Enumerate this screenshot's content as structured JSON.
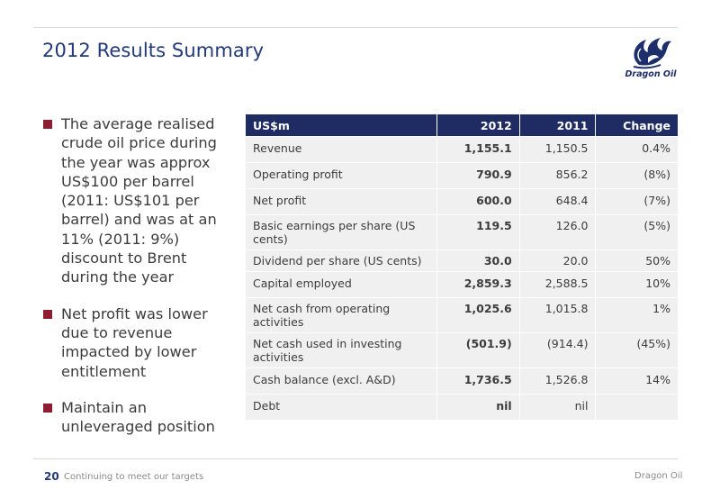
{
  "header": {
    "title": "2012 Results Summary"
  },
  "logo": {
    "text": "Dragon Oil"
  },
  "bullets": [
    "The average realised crude oil price during the year was approx US$100 per barrel (2011: US$101 per barrel) and was at an 11% (2011: 9%) discount to Brent during the year",
    "Net profit was lower due to revenue impacted by lower entitlement",
    "Maintain an unleveraged position"
  ],
  "table": {
    "headers": [
      "US$m",
      "2012",
      "2011",
      "Change"
    ],
    "rows": [
      {
        "label": "Revenue",
        "y2012": "1,155.1",
        "y2011": "1,150.5",
        "change": "0.4%"
      },
      {
        "label": "Operating profit",
        "y2012": "790.9",
        "y2011": "856.2",
        "change": "(8%)"
      },
      {
        "label": "Net profit",
        "y2012": "600.0",
        "y2011": "648.4",
        "change": "(7%)"
      },
      {
        "label": "Basic earnings per share (US cents)",
        "y2012": "119.5",
        "y2011": "126.0",
        "change": "(5%)"
      },
      {
        "label": "Dividend per share (US cents)",
        "y2012": "30.0",
        "y2011": "20.0",
        "change": "50%"
      },
      {
        "label": "Capital employed",
        "y2012": "2,859.3",
        "y2011": "2,588.5",
        "change": "10%"
      },
      {
        "label": "Net cash from operating activities",
        "y2012": "1,025.6",
        "y2011": "1,015.8",
        "change": "1%"
      },
      {
        "label": "Net cash used in investing activities",
        "y2012": "(501.9)",
        "y2011": "(914.4)",
        "change": "(45%)"
      },
      {
        "label": "Cash balance (excl. A&D)",
        "y2012": "1,736.5",
        "y2011": "1,526.8",
        "change": "14%"
      },
      {
        "label": "Debt",
        "y2012": "nil",
        "y2011": "nil",
        "change": ""
      }
    ]
  },
  "footer": {
    "page_number": "20",
    "text": "Continuing to meet our targets",
    "company": "Dragon Oil"
  },
  "colors": {
    "title": "#233a78",
    "header_bg": "#1f2c63",
    "bullet": "#8f1c33",
    "row_bg": "#f0f0f0"
  }
}
